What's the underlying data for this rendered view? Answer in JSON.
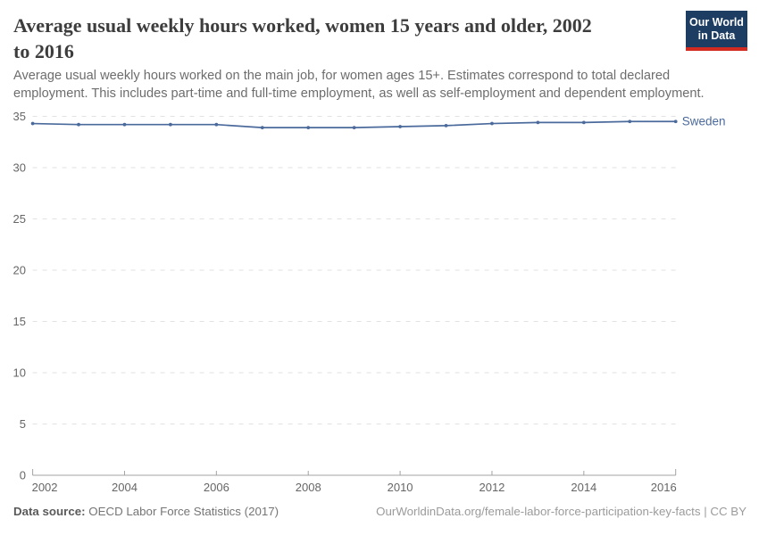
{
  "header": {
    "title_line1": "Average usual weekly hours worked, women 15 years and older, 2002",
    "title_line2": "to 2016",
    "logo_line1": "Our World",
    "logo_line2": "in Data"
  },
  "subtitle_line1": "Average usual weekly hours worked on the main job, for women ages 15+. Estimates correspond to total declared",
  "subtitle_line2": "employment. This includes part-time and full-time employment, as well as self-employment and dependent employment.",
  "chart_data": {
    "type": "line",
    "title": "Average usual weekly hours worked, women 15 years and older, 2002 to 2016",
    "x": [
      2002,
      2003,
      2004,
      2005,
      2006,
      2007,
      2008,
      2009,
      2010,
      2011,
      2012,
      2013,
      2014,
      2015,
      2016
    ],
    "series": [
      {
        "name": "Sweden",
        "color": "#4b6a9c",
        "values": [
          34.3,
          34.2,
          34.2,
          34.2,
          34.2,
          33.9,
          33.9,
          33.9,
          34.0,
          34.1,
          34.3,
          34.4,
          34.4,
          34.5,
          34.5
        ]
      }
    ],
    "xlabel": "",
    "ylabel": "",
    "ylim": [
      0,
      35
    ],
    "yticks": [
      0,
      5,
      10,
      15,
      20,
      25,
      30,
      35
    ],
    "xticks": [
      2002,
      2004,
      2006,
      2008,
      2010,
      2012,
      2014,
      2016
    ],
    "grid": "horizontal-dashed",
    "legend": "line-end-label"
  },
  "footer": {
    "datasource_label": "Data source:",
    "datasource_value": " OECD Labor Force Statistics (2017)",
    "link": "OurWorldinData.org/female-labor-force-participation-key-facts | CC BY"
  },
  "colors": {
    "series_sweden": "#4b6a9c",
    "logo_navy": "#1d3d63",
    "logo_red": "#d42b21",
    "gridline": "#e2e2e2",
    "axis_line": "#a3a3a3",
    "axis_text": "#666666",
    "title_text": "#3d3d3d",
    "subtitle_text": "#6d6d6d"
  }
}
